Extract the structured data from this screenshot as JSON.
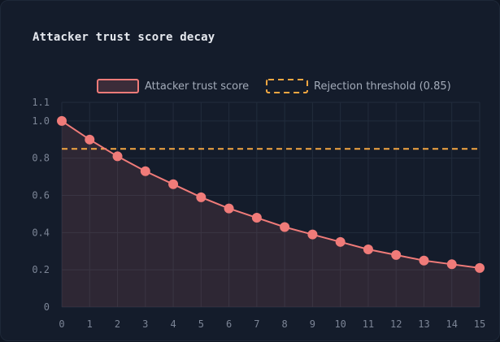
{
  "chart_data": {
    "type": "line",
    "title": "Attacker trust score decay",
    "xlabel": "",
    "ylabel": "",
    "x": [
      0,
      1,
      2,
      3,
      4,
      5,
      6,
      7,
      8,
      9,
      10,
      11,
      12,
      13,
      14,
      15
    ],
    "series": [
      {
        "name": "Attacker trust score",
        "values": [
          1.0,
          0.9,
          0.81,
          0.73,
          0.66,
          0.59,
          0.53,
          0.48,
          0.43,
          0.39,
          0.35,
          0.31,
          0.28,
          0.25,
          0.23,
          0.21
        ],
        "color": "#f07b79",
        "fill": "area"
      }
    ],
    "threshold": {
      "name": "Rejection threshold (0.85)",
      "value": 0.85,
      "color": "#f5a742",
      "style": "dashed"
    },
    "xlim": [
      0,
      15
    ],
    "ylim": [
      0,
      1.1
    ],
    "xticks": [
      "0",
      "1",
      "2",
      "3",
      "4",
      "5",
      "6",
      "7",
      "8",
      "9",
      "10",
      "11",
      "12",
      "13",
      "14",
      "15"
    ],
    "yticks": [
      {
        "value": 0,
        "label": "0"
      },
      {
        "value": 0.2,
        "label": "0.2"
      },
      {
        "value": 0.4,
        "label": "0.4"
      },
      {
        "value": 0.6,
        "label": "0.6"
      },
      {
        "value": 0.8,
        "label": "0.8"
      },
      {
        "value": 1.0,
        "label": "1.0"
      },
      {
        "value": 1.1,
        "label": "1.1"
      }
    ],
    "grid": true,
    "legend_position": "top-right"
  },
  "colors": {
    "background": "#141c2b",
    "grid": "#222c3c",
    "axis_text": "#7c8596"
  }
}
